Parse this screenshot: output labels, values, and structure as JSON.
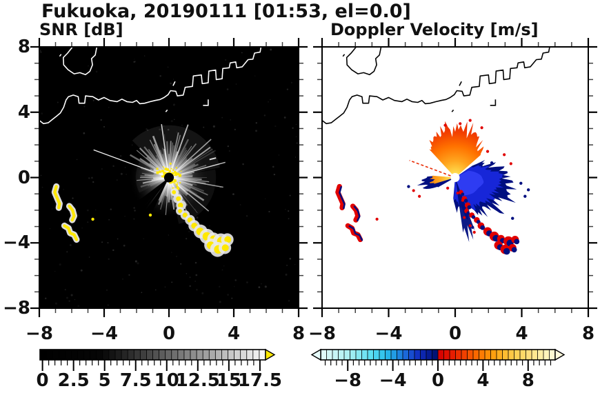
{
  "title": "Fukuoka, 20190111 [01:53, el=0.0]",
  "panels": [
    {
      "subtitle": "SNR [dB]"
    },
    {
      "subtitle": "Doppler Velocity [m/s]"
    }
  ],
  "axes": {
    "xlim": [
      -8,
      8
    ],
    "ylim": [
      -8,
      8
    ],
    "xtick_values": [
      -8,
      -4,
      0,
      4,
      8
    ],
    "xtick_labels": [
      "−8",
      "−4",
      "0",
      "4",
      "8"
    ],
    "ytick_values": [
      8,
      4,
      0,
      -4,
      -8
    ],
    "ytick_labels": [
      "8",
      "4",
      "0",
      "−4",
      "−8"
    ],
    "minor_step": 1
  },
  "colorbars": [
    {
      "name": "snr",
      "val_min": -0.2,
      "val_max": 17.95,
      "cells": 36,
      "minor_step": 0.5,
      "tick_values": [
        0,
        2.5,
        5,
        7.5,
        10,
        12.5,
        15,
        17.5
      ],
      "tick_labels": [
        "0",
        "2.5",
        "5",
        "7.5",
        "10",
        "12.5",
        "15",
        "17.5"
      ],
      "stops": [
        [
          -0.2,
          "#000000"
        ],
        [
          4.75,
          "#060606"
        ],
        [
          8,
          "#3c3c3c"
        ],
        [
          12,
          "#8a8a8a"
        ],
        [
          15,
          "#c4c4c4"
        ],
        [
          17.95,
          "#fbfbfb"
        ]
      ],
      "arrow_right_color": "#ffe800"
    },
    {
      "name": "velocity",
      "val_min": -10.4,
      "val_max": 10.4,
      "cells": 40,
      "minor_step": 0.5,
      "tick_values": [
        -8,
        -4,
        0,
        4,
        8
      ],
      "tick_labels": [
        "−8",
        "−4",
        "0",
        "4",
        "8"
      ],
      "stops": [
        [
          -10.4,
          "#e6fbfa"
        ],
        [
          -8,
          "#aef0f2"
        ],
        [
          -6,
          "#5edff2"
        ],
        [
          -4.6,
          "#28bcec"
        ],
        [
          -3.6,
          "#1e8ee2"
        ],
        [
          -2.6,
          "#1a5ad6"
        ],
        [
          -1.8,
          "#1232c4"
        ],
        [
          -1,
          "#081ea0"
        ],
        [
          -0.3,
          "#021478"
        ],
        [
          -0.05,
          "#000f66"
        ],
        [
          0.05,
          "#d40000"
        ],
        [
          1.2,
          "#e61800"
        ],
        [
          2.4,
          "#f24200"
        ],
        [
          3.6,
          "#fc7000"
        ],
        [
          4.8,
          "#ff9c0a"
        ],
        [
          6,
          "#ffbe32"
        ],
        [
          7.2,
          "#ffd45c"
        ],
        [
          8.4,
          "#ffe488"
        ],
        [
          9.4,
          "#fff2b2"
        ],
        [
          10.4,
          "#fffbdc"
        ]
      ],
      "arrow_left_color": "#e6fbfa",
      "arrow_right_color": "#fffbdc"
    }
  ],
  "chart_data": [
    {
      "type": "heatmap",
      "title": "SNR [dB]",
      "field": "signal-to-noise ratio",
      "xlim": [
        -8,
        8
      ],
      "ylim": [
        -8,
        8
      ],
      "background": "#000000",
      "colorbar_range": [
        0,
        17.5
      ],
      "over_range_color": "#ffe800",
      "features": {
        "radar_center": [
          0,
          0
        ],
        "clutter": "white radial starburst of rays centered on the radar, brightest toward N-NE-E, dark shadow wedges toward SW",
        "saturated_yellow_core_radius": 0.9
      }
    },
    {
      "type": "heatmap",
      "title": "Doppler Velocity [m/s]",
      "field": "radial velocity",
      "xlim": [
        -8,
        8
      ],
      "ylim": [
        -8,
        8
      ],
      "background": "#ffffff",
      "colorbar_range": [
        -10,
        10
      ],
      "features": {
        "radar_center": [
          0,
          0
        ],
        "positive_fan": "orange-red fan north of radar, azimuth -42 to +48 deg, radius ~3",
        "negative_mass": "blue-navy lobed mass east-southeast of radar, radius ~3.5",
        "west_patch": "small navy patch with orange inner wedge west of radar",
        "center_hole_radius": 0.27
      }
    }
  ],
  "features": {
    "se_chain": [
      [
        0.35,
        -0.9,
        0.1
      ],
      [
        0.55,
        -1.3,
        0.12
      ],
      [
        0.75,
        -1.7,
        0.13
      ],
      [
        0.68,
        -2.05,
        0.1
      ],
      [
        1.0,
        -2.3,
        0.12
      ],
      [
        1.3,
        -2.6,
        0.13
      ],
      [
        1.55,
        -2.95,
        0.15
      ],
      [
        1.95,
        -3.3,
        0.19
      ],
      [
        2.35,
        -3.6,
        0.21
      ],
      [
        2.75,
        -3.75,
        0.17
      ],
      [
        3.2,
        -3.9,
        0.22
      ],
      [
        3.6,
        -3.8,
        0.17
      ],
      [
        2.6,
        -4.15,
        0.19
      ],
      [
        3.0,
        -4.4,
        0.21
      ],
      [
        3.45,
        -4.3,
        0.17
      ]
    ],
    "west_arcs": [
      [
        [
          -6.95,
          -0.55
        ],
        [
          -7.05,
          -0.9
        ],
        [
          -6.9,
          -1.25
        ],
        [
          -6.75,
          -1.6
        ],
        [
          -6.8,
          -1.85
        ]
      ],
      [
        [
          -6.15,
          -1.75
        ],
        [
          -5.95,
          -2.0
        ],
        [
          -5.85,
          -2.35
        ],
        [
          -5.97,
          -2.6
        ]
      ],
      [
        [
          -6.45,
          -2.95
        ],
        [
          -6.2,
          -3.1
        ],
        [
          -6.1,
          -3.4
        ],
        [
          -5.85,
          -3.5
        ],
        [
          -5.7,
          -3.8
        ]
      ]
    ],
    "small_dashes": [
      [
        -4.7,
        -2.55
      ],
      [
        -1.15,
        -2.3
      ]
    ],
    "coast_main": [
      [
        -8,
        3.5
      ],
      [
        -7.75,
        3.3
      ],
      [
        -7.45,
        3.35
      ],
      [
        -7.2,
        3.55
      ],
      [
        -6.95,
        3.75
      ],
      [
        -6.7,
        3.95
      ],
      [
        -6.5,
        4.3
      ],
      [
        -6.35,
        4.75
      ],
      [
        -6.2,
        4.95
      ],
      [
        -5.9,
        5.05
      ],
      [
        -5.6,
        4.95
      ],
      [
        -5.55,
        4.55
      ],
      [
        -5.2,
        4.55
      ],
      [
        -5.15,
        5.0
      ],
      [
        -4.7,
        4.95
      ],
      [
        -4.35,
        4.75
      ],
      [
        -4.0,
        4.9
      ],
      [
        -3.65,
        4.72
      ],
      [
        -3.2,
        4.65
      ],
      [
        -2.9,
        4.8
      ],
      [
        -2.6,
        4.65
      ],
      [
        -2.25,
        4.6
      ],
      [
        -2.0,
        4.72
      ],
      [
        -1.8,
        4.52
      ],
      [
        -1.5,
        4.55
      ],
      [
        -1.15,
        4.65
      ],
      [
        -0.85,
        4.72
      ],
      [
        -0.55,
        4.78
      ],
      [
        -0.3,
        4.9
      ],
      [
        -0.05,
        5.08
      ],
      [
        0.1,
        5.32
      ],
      [
        0.42,
        5.28
      ],
      [
        0.52,
        5.0
      ],
      [
        0.88,
        5.05
      ],
      [
        1.0,
        5.52
      ],
      [
        1.45,
        5.58
      ],
      [
        1.5,
        6.22
      ],
      [
        2.0,
        6.28
      ],
      [
        2.05,
        5.75
      ],
      [
        2.42,
        5.8
      ],
      [
        2.46,
        6.52
      ],
      [
        2.88,
        6.58
      ],
      [
        2.92,
        6.0
      ],
      [
        3.28,
        6.05
      ],
      [
        3.32,
        6.68
      ],
      [
        3.72,
        6.72
      ],
      [
        3.78,
        7.02
      ],
      [
        4.12,
        7.08
      ],
      [
        4.18,
        6.72
      ],
      [
        4.52,
        6.78
      ],
      [
        4.88,
        7.22
      ],
      [
        5.18,
        7.25
      ],
      [
        5.28,
        7.62
      ],
      [
        5.62,
        7.68
      ],
      [
        5.68,
        8.0
      ]
    ],
    "coast_peninsula": [
      [
        -5.95,
        8
      ],
      [
        -6.25,
        7.62
      ],
      [
        -6.52,
        7.35
      ],
      [
        -6.5,
        6.9
      ],
      [
        -6.22,
        6.6
      ],
      [
        -5.85,
        6.35
      ],
      [
        -5.5,
        6.42
      ],
      [
        -5.15,
        6.3
      ],
      [
        -4.88,
        6.5
      ],
      [
        -4.72,
        6.9
      ],
      [
        -4.78,
        7.28
      ],
      [
        -4.55,
        7.5
      ],
      [
        -4.45,
        8
      ]
    ],
    "coast_bits": [
      [
        [
          0.25,
          5.62
        ],
        [
          0.38,
          5.88
        ]
      ],
      [
        [
          2.1,
          4.42
        ],
        [
          2.42,
          4.42
        ],
        [
          2.42,
          4.78
        ]
      ],
      [
        [
          -6.75,
          7.42
        ],
        [
          -6.65,
          7.55
        ]
      ],
      [
        [
          -0.2,
          4.02
        ],
        [
          -0.1,
          4.14
        ]
      ]
    ]
  },
  "colors": {
    "snr_saturated": "#ffe800",
    "doppler_positive": "#e82800",
    "doppler_negative": "#1726d8",
    "doppler_navy": "#000f80",
    "coast_snr": "#ffffff",
    "coast_doppler": "#000000"
  }
}
